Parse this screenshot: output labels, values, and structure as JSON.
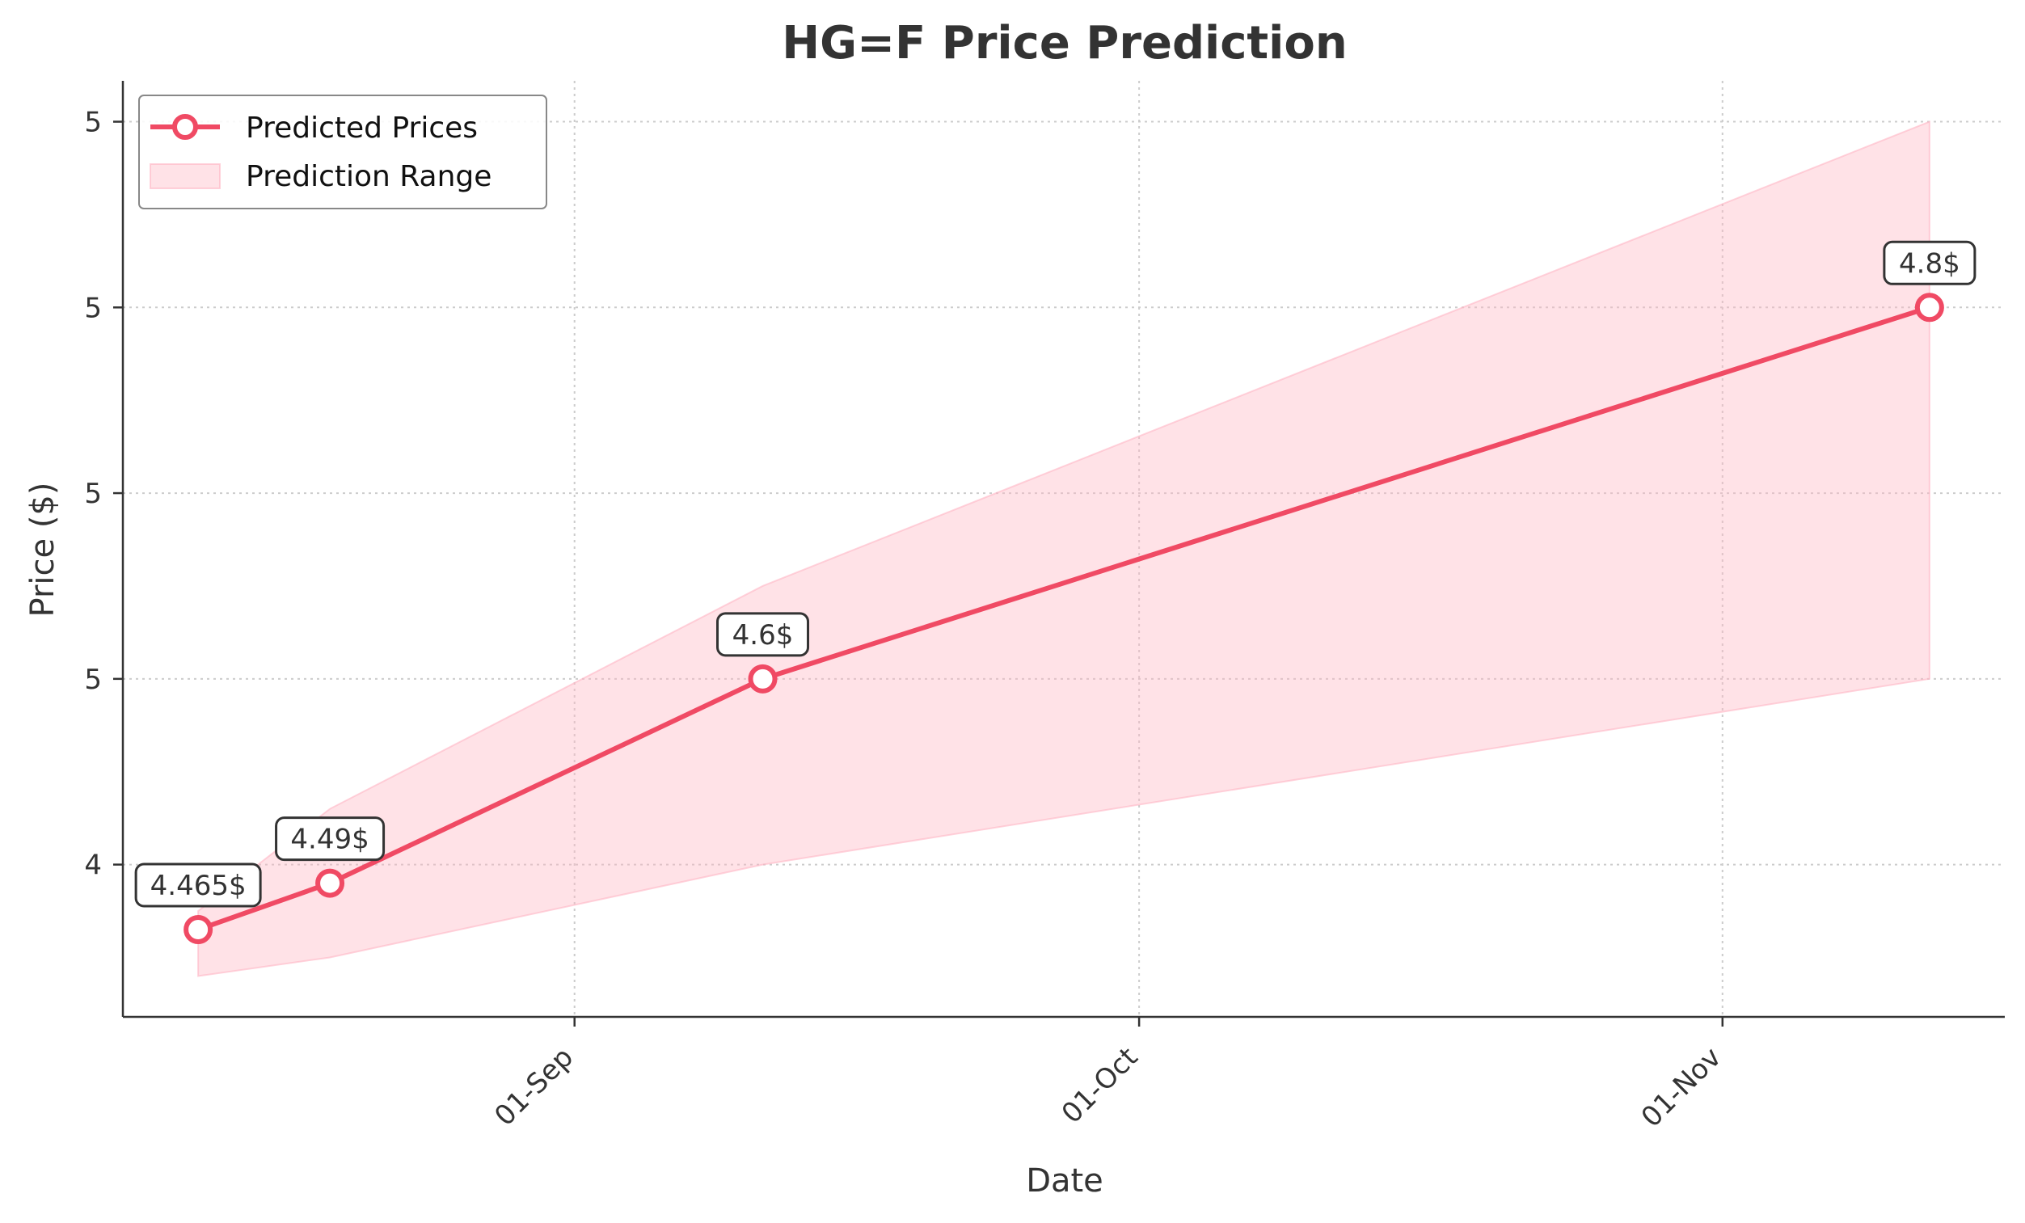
{
  "chart_data": {
    "type": "line",
    "title": "HG=F Price Prediction",
    "xlabel": "Date",
    "ylabel": "Price ($)",
    "x_ticks": [
      {
        "date": "2024-09-01",
        "label": "01-Sep"
      },
      {
        "date": "2024-10-01",
        "label": "01-Oct"
      },
      {
        "date": "2024-11-01",
        "label": "01-Nov"
      }
    ],
    "y_ticks": [
      {
        "value": 4.5,
        "label": "4"
      },
      {
        "value": 4.6,
        "label": "5"
      },
      {
        "value": 4.7,
        "label": "5"
      },
      {
        "value": 4.8,
        "label": "5"
      },
      {
        "value": 4.9,
        "label": "5"
      }
    ],
    "xlim": [
      "2024-08-08",
      "2024-11-16"
    ],
    "ylim": [
      4.418,
      4.922
    ],
    "grid": true,
    "legend_position": "top-left",
    "series": [
      {
        "name": "Predicted Prices",
        "color": "#f04a64",
        "x": [
          "2024-08-12",
          "2024-08-19",
          "2024-09-11",
          "2024-11-12"
        ],
        "y": [
          4.465,
          4.49,
          4.6,
          4.8
        ],
        "labels": [
          "4.465$",
          "4.49$",
          "4.6$",
          "4.8$"
        ]
      }
    ],
    "range": {
      "name": "Prediction Range",
      "color": "#ffb6c4",
      "x": [
        "2024-08-12",
        "2024-08-19",
        "2024-09-11",
        "2024-11-12"
      ],
      "lower": [
        4.44,
        4.45,
        4.5,
        4.6
      ],
      "upper": [
        4.475,
        4.53,
        4.65,
        4.9
      ]
    }
  }
}
